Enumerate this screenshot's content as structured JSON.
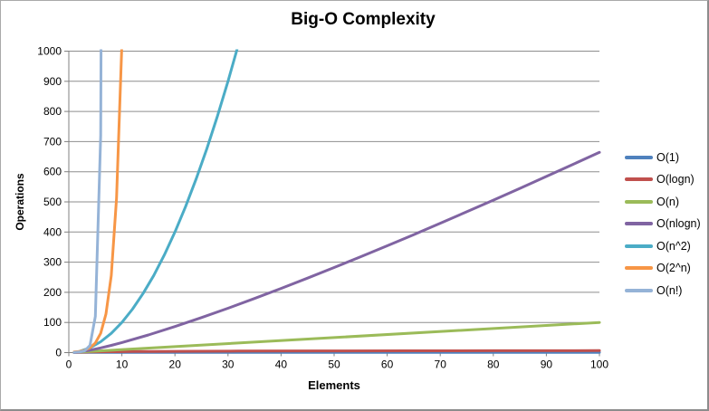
{
  "chart_data": {
    "type": "line",
    "title": "Big-O Complexity",
    "xlabel": "Elements",
    "ylabel": "Operations",
    "xlim": [
      0,
      100
    ],
    "ylim": [
      0,
      1000
    ],
    "x_ticks": [
      0,
      10,
      20,
      30,
      40,
      50,
      60,
      70,
      80,
      90,
      100
    ],
    "y_ticks": [
      0,
      100,
      200,
      300,
      400,
      500,
      600,
      700,
      800,
      900,
      1000
    ],
    "grid": "horizontal",
    "legend_position": "right",
    "colors": {
      "gridline": "#8e8e8e",
      "axis": "#808080",
      "text": "#000000",
      "background": "#ffffff"
    },
    "series": [
      {
        "name": "O(1)",
        "color": "#4F81BD",
        "points": [
          [
            1,
            1
          ],
          [
            100,
            1
          ]
        ]
      },
      {
        "name": "O(logn)",
        "color": "#C0504D",
        "points": [
          [
            1,
            0
          ],
          [
            2,
            1
          ],
          [
            3,
            1.58
          ],
          [
            4,
            2
          ],
          [
            6,
            2.58
          ],
          [
            8,
            3
          ],
          [
            12,
            3.58
          ],
          [
            16,
            4
          ],
          [
            24,
            4.58
          ],
          [
            32,
            5
          ],
          [
            48,
            5.58
          ],
          [
            64,
            6
          ],
          [
            80,
            6.32
          ],
          [
            100,
            6.64
          ]
        ]
      },
      {
        "name": "O(n)",
        "color": "#9BBB59",
        "points": [
          [
            1,
            1
          ],
          [
            100,
            100
          ]
        ]
      },
      {
        "name": "O(nlogn)",
        "color": "#8064A2",
        "points": [
          [
            1,
            0
          ],
          [
            2,
            2
          ],
          [
            4,
            8
          ],
          [
            6,
            15.5
          ],
          [
            8,
            24
          ],
          [
            10,
            33.2
          ],
          [
            15,
            58.6
          ],
          [
            20,
            86.4
          ],
          [
            25,
            116.1
          ],
          [
            30,
            147.2
          ],
          [
            35,
            179.5
          ],
          [
            40,
            212.9
          ],
          [
            45,
            247.1
          ],
          [
            50,
            282.2
          ],
          [
            55,
            318
          ],
          [
            60,
            354.4
          ],
          [
            65,
            391.4
          ],
          [
            70,
            429
          ],
          [
            75,
            467.2
          ],
          [
            80,
            505.8
          ],
          [
            85,
            544.8
          ],
          [
            90,
            584.3
          ],
          [
            95,
            624.2
          ],
          [
            100,
            664.4
          ]
        ]
      },
      {
        "name": "O(n^2)",
        "color": "#4BACC6",
        "points": [
          [
            1,
            1
          ],
          [
            2,
            4
          ],
          [
            4,
            16
          ],
          [
            6,
            36
          ],
          [
            8,
            64
          ],
          [
            10,
            100
          ],
          [
            12,
            144
          ],
          [
            14,
            196
          ],
          [
            16,
            256
          ],
          [
            18,
            324
          ],
          [
            20,
            400
          ],
          [
            22,
            484
          ],
          [
            24,
            576
          ],
          [
            26,
            676
          ],
          [
            28,
            784
          ],
          [
            30,
            900
          ],
          [
            32,
            1024
          ],
          [
            33,
            1089
          ]
        ]
      },
      {
        "name": "O(2^n)",
        "color": "#F79646",
        "points": [
          [
            1,
            2
          ],
          [
            2,
            4
          ],
          [
            3,
            8
          ],
          [
            4,
            16
          ],
          [
            5,
            32
          ],
          [
            6,
            64
          ],
          [
            7,
            128
          ],
          [
            8,
            256
          ],
          [
            9,
            512
          ],
          [
            10,
            1024
          ],
          [
            11,
            2048
          ]
        ]
      },
      {
        "name": "O(n!)",
        "color": "#95B3D7",
        "points": [
          [
            1,
            1
          ],
          [
            2,
            2
          ],
          [
            3,
            6
          ],
          [
            4,
            24
          ],
          [
            5,
            120
          ],
          [
            6,
            720
          ],
          [
            7,
            5040
          ]
        ]
      }
    ]
  }
}
